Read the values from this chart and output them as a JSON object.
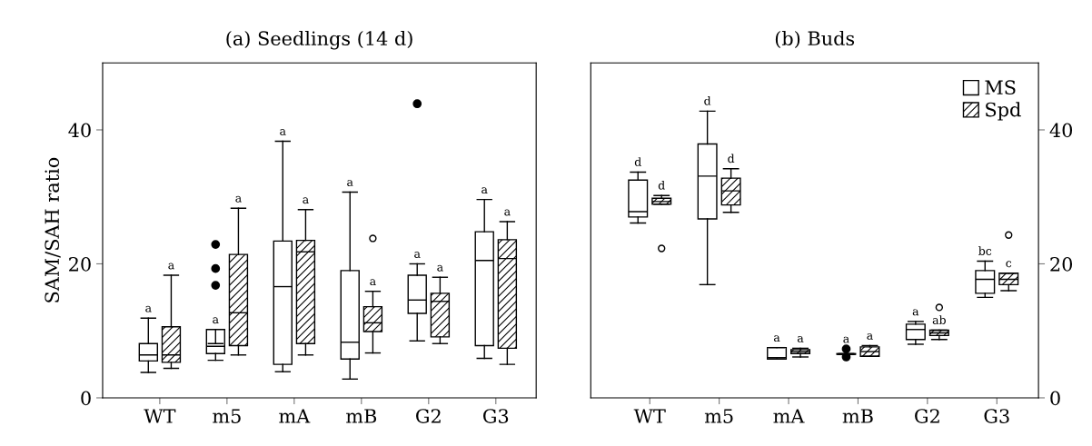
{
  "chart_data": [
    {
      "type": "box",
      "title": "(a) Seedlings (14 d)",
      "ylabel": "SAM/SAH ratio",
      "categories": [
        "WT",
        "m5",
        "mA",
        "mB",
        "G2",
        "G3"
      ],
      "ylim": [
        0,
        50
      ],
      "yticks": [
        0,
        20,
        40
      ],
      "grid": false,
      "marker": "circle",
      "series": [
        {
          "boxes": [
            {
              "low": 3.8,
              "q1": 5.5,
              "median": 6.4,
              "q3": 8.1,
              "high": 11.9
            },
            {
              "low": 5.6,
              "q1": 6.6,
              "median": 7.7,
              "q3": 10.2,
              "high": 8.1,
              "outliers": [
                22.9,
                19.3,
                16.8
              ]
            },
            {
              "low": 3.9,
              "q1": 5.0,
              "median": 16.6,
              "q3": 23.4,
              "high": 38.3
            },
            {
              "low": 2.8,
              "q1": 5.8,
              "median": 8.3,
              "q3": 19.0,
              "high": 30.7
            },
            {
              "low": 8.5,
              "q1": 12.6,
              "median": 14.6,
              "q3": 18.3,
              "high": 20.0,
              "outliers": [
                43.9
              ]
            },
            {
              "low": 5.9,
              "q1": 7.8,
              "median": 20.5,
              "q3": 24.8,
              "high": 29.6
            }
          ],
          "value_labels": [
            "a",
            "a",
            "a",
            "a",
            "a",
            "a"
          ]
        },
        {
          "boxes": [
            {
              "low": 4.4,
              "q1": 5.3,
              "median": 6.4,
              "q3": 10.6,
              "high": 18.3
            },
            {
              "low": 6.4,
              "q1": 7.8,
              "median": 12.7,
              "q3": 21.4,
              "high": 28.3
            },
            {
              "low": 6.4,
              "q1": 8.1,
              "median": 21.8,
              "q3": 23.5,
              "high": 28.1
            },
            {
              "low": 6.7,
              "q1": 9.9,
              "median": 11.2,
              "q3": 13.6,
              "high": 15.9,
              "outliers": [
                23.8
              ]
            },
            {
              "low": 8.1,
              "q1": 9.1,
              "median": 14.4,
              "q3": 15.6,
              "high": 18.0
            },
            {
              "low": 5.0,
              "q1": 7.4,
              "median": 20.8,
              "q3": 23.6,
              "high": 26.3
            }
          ],
          "value_labels": [
            "a",
            "a",
            "a",
            "a",
            "a",
            "a"
          ]
        }
      ]
    },
    {
      "type": "box",
      "title": "(b) Buds",
      "categories": [
        "WT",
        "m5",
        "mA",
        "mB",
        "G2",
        "G3"
      ],
      "y2lim": [
        0,
        50
      ],
      "y2ticks": [
        0,
        20,
        40
      ],
      "grid": false,
      "legend": "top right",
      "marker": "circle",
      "series": [
        {
          "name": "MS",
          "axis": "y2",
          "boxes": [
            {
              "low": 26.1,
              "q1": 27.0,
              "median": 27.8,
              "q3": 32.5,
              "high": 33.7
            },
            {
              "low": 16.9,
              "q1": 26.7,
              "median": 33.1,
              "q3": 37.9,
              "high": 42.8
            },
            {
              "low": 5.8,
              "q1": 5.8,
              "median": 6.0,
              "q3": 7.5,
              "high": 7.5
            },
            {
              "low": 6.5,
              "q1": 6.5,
              "median": 6.5,
              "q3": 6.6,
              "high": 6.6,
              "outliers": [
                7.3,
                6.1
              ]
            },
            {
              "low": 8.0,
              "q1": 8.7,
              "median": 10.2,
              "q3": 11.0,
              "high": 11.4
            },
            {
              "low": 15.0,
              "q1": 15.6,
              "median": 17.7,
              "q3": 19.0,
              "high": 20.4
            }
          ],
          "value_labels": [
            "d",
            "d",
            "a",
            "a",
            "a",
            "bc"
          ]
        },
        {
          "name": "Spd",
          "axis": "y2",
          "boxes": [
            {
              "low": 28.9,
              "q1": 28.9,
              "median": 29.3,
              "q3": 29.8,
              "high": 30.2,
              "outliers": [
                22.3
              ]
            },
            {
              "low": 27.7,
              "q1": 28.8,
              "median": 30.9,
              "q3": 32.8,
              "high": 34.2
            },
            {
              "low": 6.1,
              "q1": 6.6,
              "median": 6.9,
              "q3": 7.2,
              "high": 7.4
            },
            {
              "low": 6.2,
              "q1": 6.2,
              "median": 6.9,
              "q3": 7.6,
              "high": 7.8
            },
            {
              "low": 8.7,
              "q1": 9.3,
              "median": 9.7,
              "q3": 10.1,
              "high": 10.1,
              "outliers": [
                13.5
              ]
            },
            {
              "low": 16.0,
              "q1": 16.9,
              "median": 17.7,
              "q3": 18.6,
              "high": 18.6,
              "outliers": [
                24.3
              ]
            }
          ],
          "value_labels": [
            "d",
            "d",
            "a",
            "a",
            "ab",
            "c"
          ]
        }
      ]
    }
  ]
}
